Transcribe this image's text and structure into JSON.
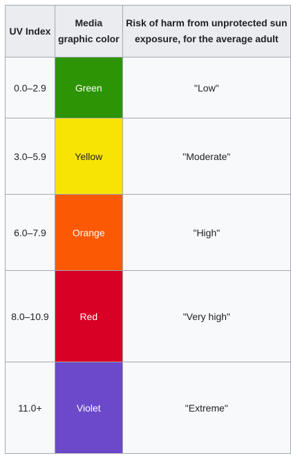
{
  "table": {
    "headers": {
      "uv_index": "UV Index",
      "media_color": "Media graphic color",
      "risk": "Risk of harm from unprotected sun exposure, for the average adult"
    },
    "rows": [
      {
        "uv_range": "0.0–2.9",
        "color_name": "Green",
        "color_hex": "#2d9405",
        "text_color": "#ffffff",
        "risk": "\"Low\""
      },
      {
        "uv_range": "3.0–5.9",
        "color_name": "Yellow",
        "color_hex": "#f8e404",
        "text_color": "#202122",
        "risk": "\"Moderate\""
      },
      {
        "uv_range": "6.0–7.9",
        "color_name": "Orange",
        "color_hex": "#fc5904",
        "text_color": "#ffffff",
        "risk": "\"High\""
      },
      {
        "uv_range": "8.0–10.9",
        "color_name": "Red",
        "color_hex": "#d80024",
        "text_color": "#ffffff",
        "risk": "\"Very high\""
      },
      {
        "uv_range": "11.0+",
        "color_name": "Violet",
        "color_hex": "#6b49c8",
        "text_color": "#ffffff",
        "risk": "\"Extreme\""
      }
    ]
  }
}
